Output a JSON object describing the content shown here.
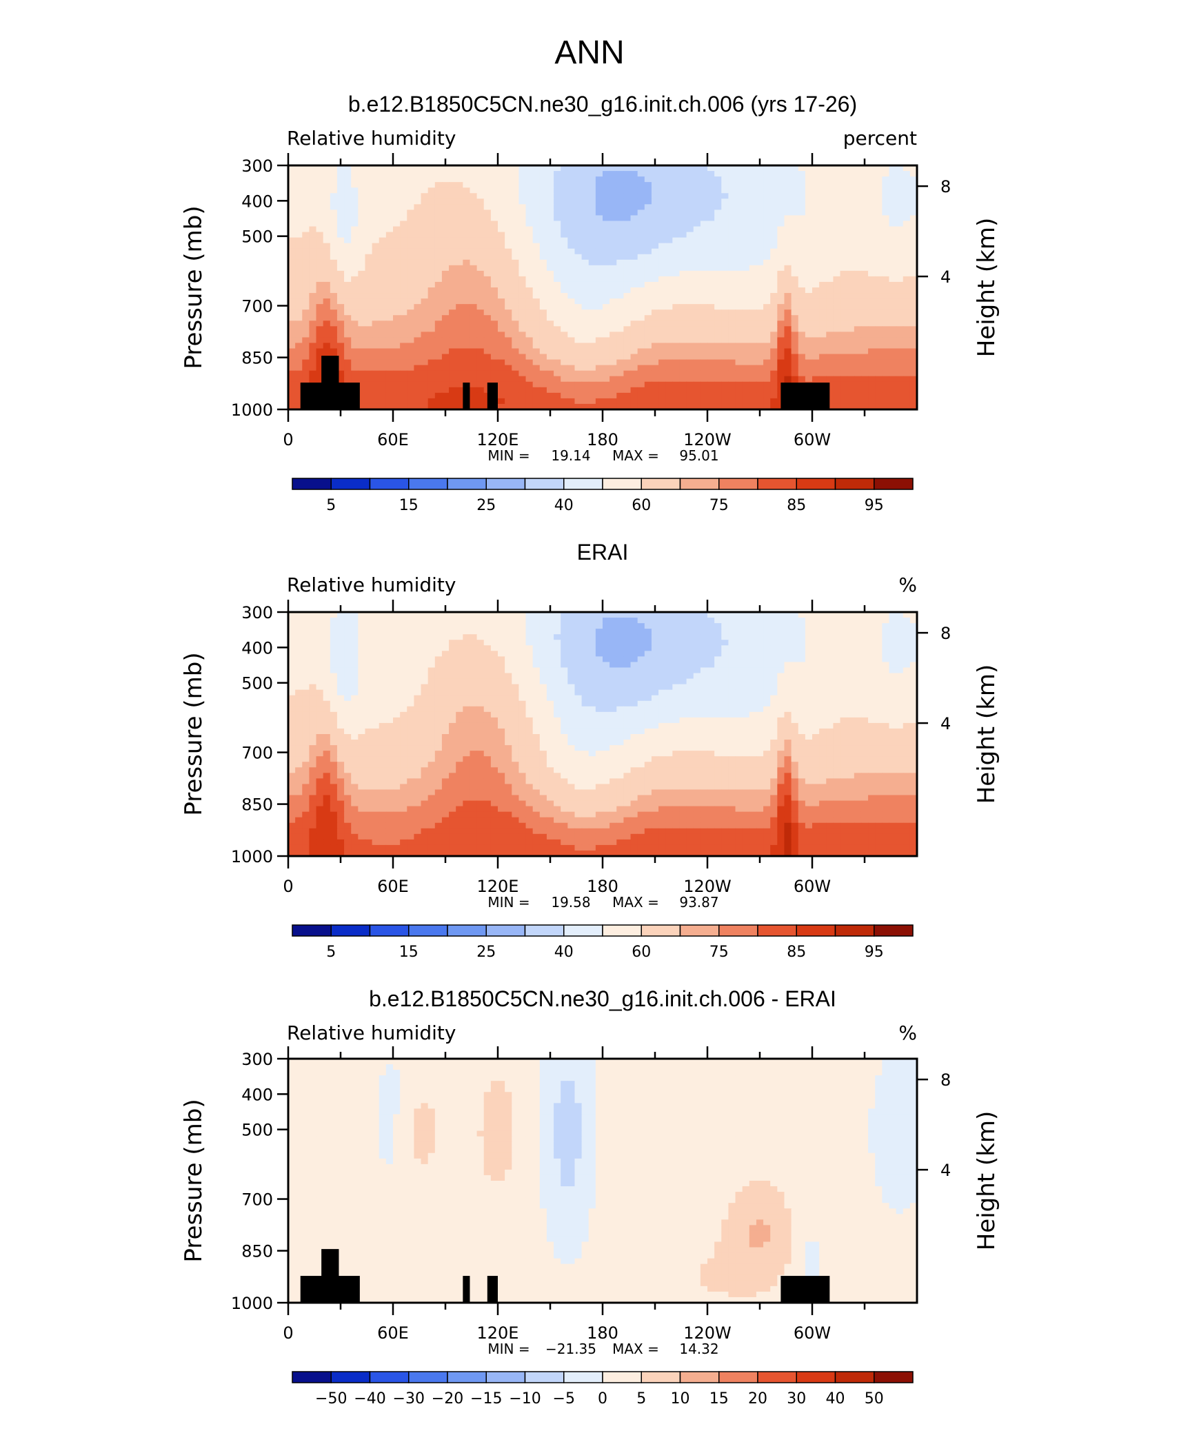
{
  "figure_title": "ANN",
  "colors": {
    "land_mask": "#000000",
    "abs_palette": [
      "#08108c",
      "#0a2dc8",
      "#2a55e6",
      "#4a78ee",
      "#6f98f2",
      "#98b6f6",
      "#c2d6fa",
      "#e3eefb",
      "#fdeee0",
      "#fbd3bb",
      "#f5ae90",
      "#ef8260",
      "#e65530",
      "#d83a14",
      "#bf2a08",
      "#8c1004"
    ],
    "diff_palette": [
      "#08108c",
      "#0a2dc8",
      "#2a55e6",
      "#4a78ee",
      "#6f98f2",
      "#98b6f6",
      "#c2d6fa",
      "#e3eefb",
      "#fdeee0",
      "#fbd3bb",
      "#f5ae90",
      "#ef8260",
      "#e65530",
      "#d83a14",
      "#bf2a08",
      "#8c1004"
    ]
  },
  "chart_data": [
    {
      "type": "heatmap",
      "title": "b.e12.B1850C5CN.ne30_g16.init.ch.006 (yrs 17-26)",
      "left_label": "Relative humidity",
      "right_label": "percent",
      "ylabel": "Pressure (mb)",
      "y2label": "Height (km)",
      "x_tick_labels": [
        "0",
        "60E",
        "120E",
        "180",
        "120W",
        "60W"
      ],
      "y_tick_labels": [
        "300",
        "400",
        "500",
        "700",
        "850",
        "1000"
      ],
      "y2_tick_labels": [
        "8",
        "4"
      ],
      "stats": {
        "min_label": "MIN =",
        "min": "19.14",
        "max_label": "MAX =",
        "max": "95.01"
      },
      "colorbar_labels": [
        "5",
        "15",
        "25",
        "40",
        "60",
        "75",
        "85",
        "95"
      ],
      "levels": [
        5,
        10,
        15,
        20,
        25,
        30,
        40,
        50,
        60,
        70,
        75,
        80,
        85,
        90,
        95
      ]
    },
    {
      "type": "heatmap",
      "title": "ERAI",
      "left_label": "Relative humidity",
      "right_label": "%",
      "ylabel": "Pressure (mb)",
      "y2label": "Height (km)",
      "x_tick_labels": [
        "0",
        "60E",
        "120E",
        "180",
        "120W",
        "60W"
      ],
      "y_tick_labels": [
        "300",
        "400",
        "500",
        "700",
        "850",
        "1000"
      ],
      "y2_tick_labels": [
        "8",
        "4"
      ],
      "stats": {
        "min_label": "MIN =",
        "min": "19.58",
        "max_label": "MAX =",
        "max": "93.87"
      },
      "colorbar_labels": [
        "5",
        "15",
        "25",
        "40",
        "60",
        "75",
        "85",
        "95"
      ],
      "levels": [
        5,
        10,
        15,
        20,
        25,
        30,
        40,
        50,
        60,
        70,
        75,
        80,
        85,
        90,
        95
      ]
    },
    {
      "type": "heatmap",
      "title": "b.e12.B1850C5CN.ne30_g16.init.ch.006 - ERAI",
      "left_label": "Relative humidity",
      "right_label": "%",
      "ylabel": "Pressure (mb)",
      "y2label": "Height (km)",
      "x_tick_labels": [
        "0",
        "60E",
        "120E",
        "180",
        "120W",
        "60W"
      ],
      "y_tick_labels": [
        "300",
        "400",
        "500",
        "700",
        "850",
        "1000"
      ],
      "y2_tick_labels": [
        "8",
        "4"
      ],
      "stats": {
        "min_label": "MIN =",
        "min": "−21.35",
        "max_label": "MAX =",
        "max": "14.32"
      },
      "colorbar_labels": [
        "−50",
        "−40",
        "−30",
        "−20",
        "−15",
        "−10",
        "−5",
        "0",
        "5",
        "10",
        "15",
        "20",
        "30",
        "40",
        "50"
      ],
      "levels": [
        -50,
        -40,
        -30,
        -20,
        -15,
        -10,
        -5,
        0,
        5,
        10,
        15,
        20,
        30,
        40,
        50
      ]
    }
  ]
}
